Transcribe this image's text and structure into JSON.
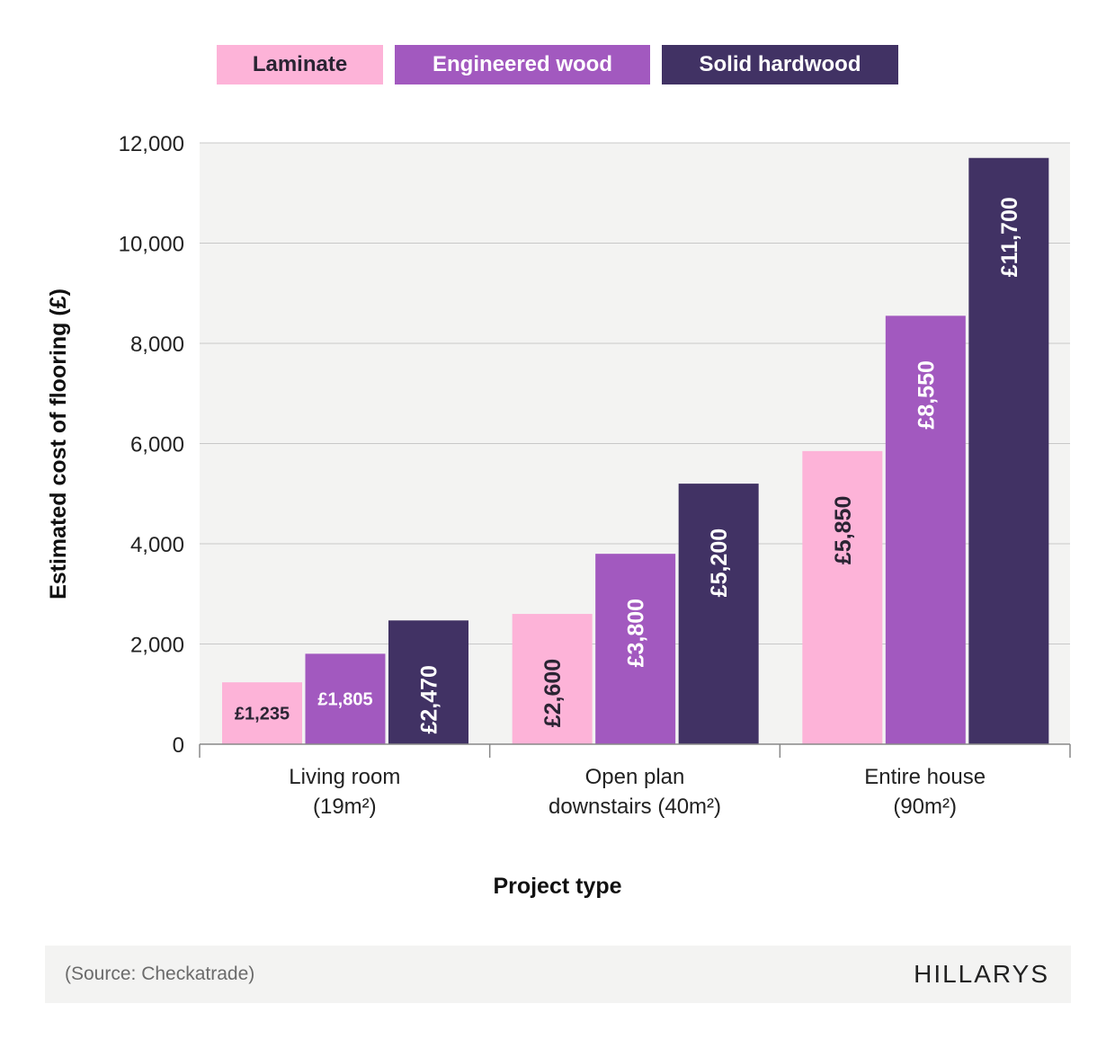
{
  "chart_data": {
    "type": "bar",
    "title": "",
    "xlabel": "Project type",
    "ylabel": "Estimated cost of flooring (£)",
    "ylim": [
      0,
      12000
    ],
    "yticks": [
      0,
      2000,
      4000,
      6000,
      8000,
      10000,
      12000
    ],
    "ytick_labels": [
      "0",
      "2,000",
      "4,000",
      "6,000",
      "8,000",
      "10,000",
      "12,000"
    ],
    "grid": true,
    "legend_position": "top",
    "categories": [
      [
        "Living room",
        "(19m²)"
      ],
      [
        "Open plan",
        "downstairs (40m²)"
      ],
      [
        "Entire house",
        "(90m²)"
      ]
    ],
    "series": [
      {
        "name": "Laminate",
        "color": "#fdb3d8",
        "text_color": "#2a2433",
        "values": [
          1235,
          2600,
          5850
        ],
        "labels": [
          "£1,235",
          "£2,600",
          "£5,850"
        ]
      },
      {
        "name": "Engineered wood",
        "color": "#a259bf",
        "text_color": "#ffffff",
        "values": [
          1805,
          3800,
          8550
        ],
        "labels": [
          "£1,805",
          "£3,800",
          "£8,550"
        ]
      },
      {
        "name": "Solid hardwood",
        "color": "#413264",
        "text_color": "#ffffff",
        "values": [
          2470,
          5200,
          11700
        ],
        "labels": [
          "£2,470",
          "£5,200",
          "£11,700"
        ]
      }
    ]
  },
  "footer": {
    "source": "(Source: Checkatrade)",
    "logo": "HILLARYS"
  }
}
